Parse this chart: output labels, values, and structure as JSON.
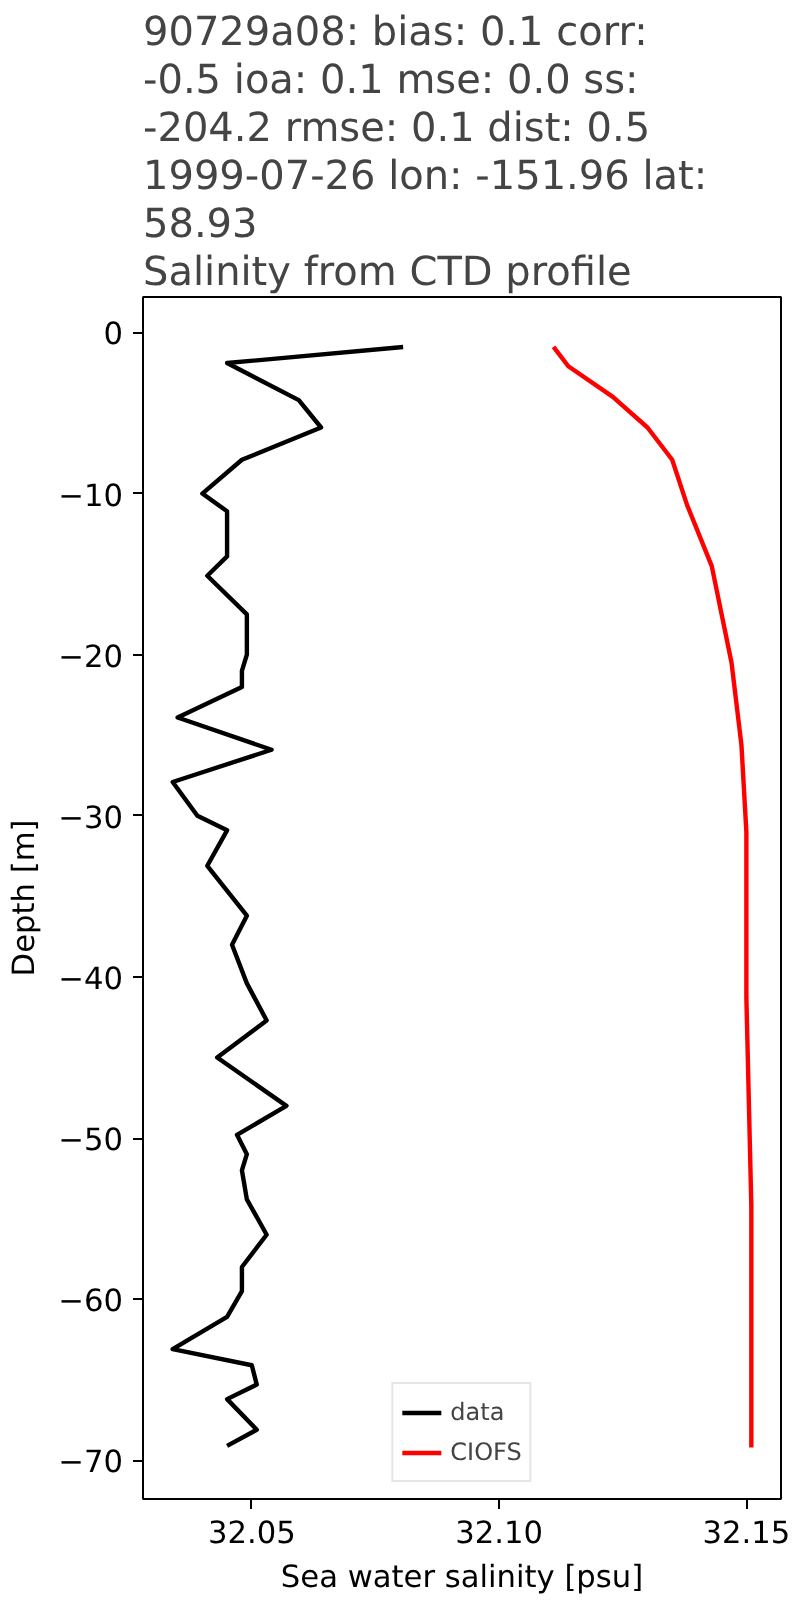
{
  "chart_data": {
    "type": "line",
    "orientation": "horizontal",
    "title": "90729a08: bias: 0.1  corr:\n-0.5  ioa: 0.1  mse: 0.0  ss:\n-204.2  rmse: 0.1  dist: 0.5\n1999-07-26 lon: -151.96 lat:\n58.93\nSalinity from CTD profile",
    "xlabel": "Sea water salinity [psu]",
    "ylabel": "Depth [m]",
    "xlim": [
      32.028,
      32.157
    ],
    "ylim": [
      -72.4,
      2.2
    ],
    "xticks": [
      {
        "value": 32.05,
        "label": "32.05"
      },
      {
        "value": 32.1,
        "label": "32.10"
      },
      {
        "value": 32.15,
        "label": "32.15"
      }
    ],
    "yticks": [
      {
        "value": 0,
        "label": "0"
      },
      {
        "value": -10,
        "label": "−10"
      },
      {
        "value": -20,
        "label": "−20"
      },
      {
        "value": -30,
        "label": "−30"
      },
      {
        "value": -40,
        "label": "−40"
      },
      {
        "value": -50,
        "label": "−50"
      },
      {
        "value": -60,
        "label": "−60"
      },
      {
        "value": -70,
        "label": "−70"
      }
    ],
    "grid": false,
    "legend": "bottom",
    "series": [
      {
        "name": "data",
        "color": "#000000",
        "x": [
          -0.9,
          -1.9,
          -4.2,
          -5.9,
          -7.9,
          -10.0,
          -11.1,
          -13.9,
          -15.1,
          -17.5,
          -20.0,
          -21.0,
          -22.0,
          -23.9,
          -25.9,
          -27.9,
          -30.0,
          -30.9,
          -33.1,
          -36.2,
          -38.0,
          -40.4,
          -42.7,
          -45.0,
          -48.0,
          -49.8,
          -51.0,
          -52.0,
          -53.8,
          -56.0,
          -58.0,
          -59.5,
          -61.1,
          -63.1,
          -64.1,
          -65.3,
          -66.2,
          -68.1,
          -69.1
        ],
        "values": [
          32.0806,
          32.045,
          32.0595,
          32.064,
          32.048,
          32.04,
          32.045,
          32.045,
          32.041,
          32.049,
          32.049,
          32.048,
          32.048,
          32.035,
          32.054,
          32.034,
          32.039,
          32.045,
          32.041,
          32.049,
          32.046,
          32.049,
          32.053,
          32.043,
          32.057,
          32.047,
          32.049,
          32.048,
          32.049,
          32.053,
          32.048,
          32.048,
          32.045,
          32.034,
          32.05,
          32.051,
          32.045,
          32.051,
          32.045
        ]
      },
      {
        "name": "CIOFS",
        "color": "#ff0000",
        "x": [
          -0.9,
          -2.1,
          -4.0,
          -5.9,
          -7.9,
          -10.7,
          -14.5,
          -20.5,
          -25.6,
          -31.0,
          -41.3,
          -54.2,
          -69.2
        ],
        "values": [
          32.111,
          32.114,
          32.123,
          32.13,
          32.135,
          32.138,
          32.143,
          32.147,
          32.149,
          32.15,
          32.15,
          32.151,
          32.151
        ]
      }
    ]
  }
}
